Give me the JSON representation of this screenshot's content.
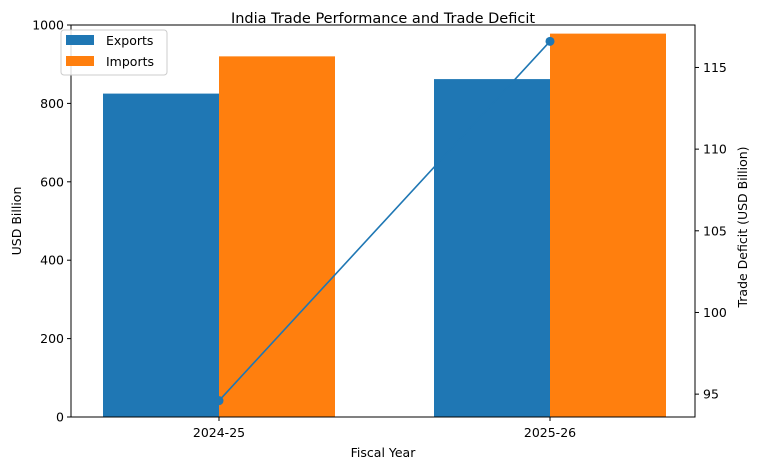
{
  "chart_data": {
    "type": "bar",
    "title": "India Trade Performance and Trade Deficit",
    "xlabel": "Fiscal Year",
    "ylabel": "USD Billion",
    "y2label": "Trade Deficit (USD Billion)",
    "categories": [
      "2024-25",
      "2025-26"
    ],
    "ylim": [
      0,
      1000
    ],
    "y_ticks": [
      0,
      200,
      400,
      600,
      800,
      1000
    ],
    "y2lim": [
      93.6,
      117.6
    ],
    "y2_ticks": [
      95,
      100,
      105,
      110,
      115
    ],
    "legend_position": "top-left",
    "series": [
      {
        "name": "Exports",
        "type": "bar",
        "axis": "left",
        "color": "#1f77b4",
        "values": [
          825,
          862
        ]
      },
      {
        "name": "Imports",
        "type": "bar",
        "axis": "left",
        "color": "#ff7f0e",
        "values": [
          920,
          978
        ]
      },
      {
        "type": "line",
        "axis": "right",
        "color": "#1f77b4",
        "values": [
          94.6,
          116.6
        ]
      }
    ]
  }
}
